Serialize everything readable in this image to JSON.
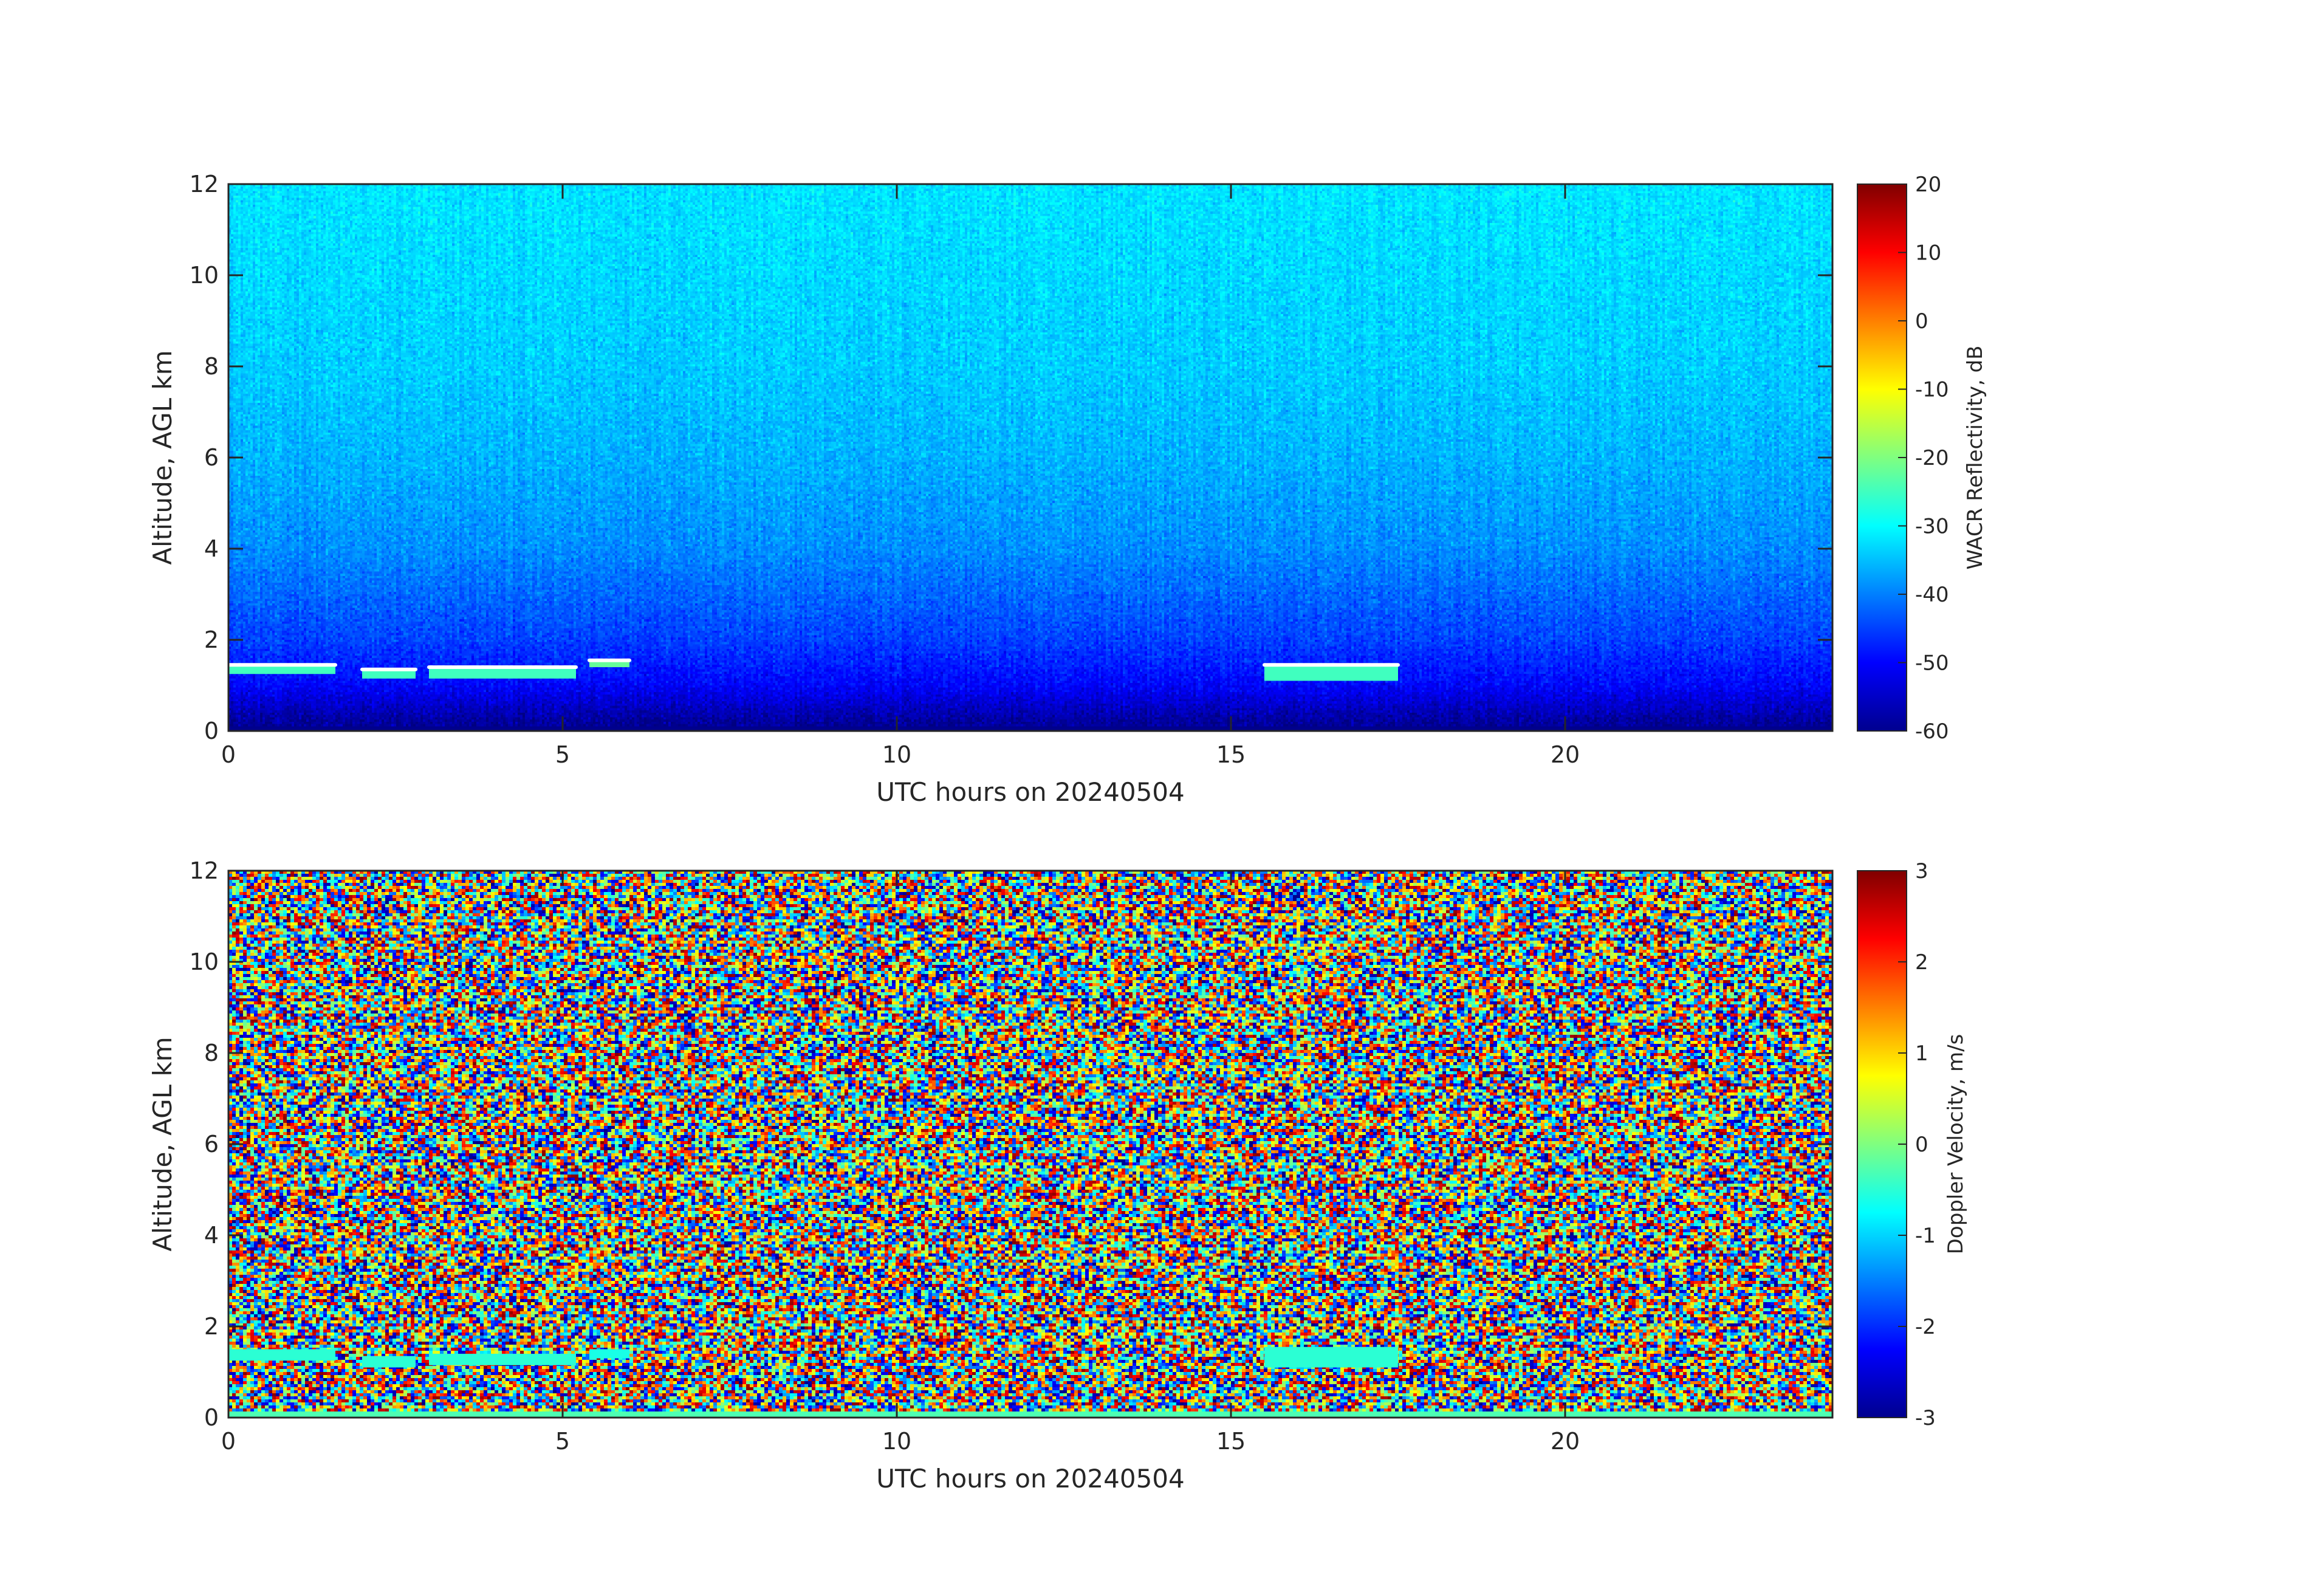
{
  "chart_data": [
    {
      "type": "heatmap",
      "title": "",
      "xlabel": "UTC hours on 20240504",
      "ylabel": "Altitude, AGL km",
      "xlim": [
        0,
        24
      ],
      "ylim": [
        0,
        12
      ],
      "xticks": [
        0,
        5,
        10,
        15,
        20
      ],
      "yticks": [
        0,
        2,
        4,
        6,
        8,
        10,
        12
      ],
      "colormap": "jet",
      "colorbar": {
        "label": "WACR Reflectivity, dB",
        "range": [
          -60,
          20
        ],
        "ticks": [
          20,
          10,
          0,
          -10,
          -20,
          -30,
          -40,
          -50,
          -60
        ]
      },
      "background_field": [
        {
          "altitude_km": 0.2,
          "value_db": -58
        },
        {
          "altitude_km": 0.5,
          "value_db": -55
        },
        {
          "altitude_km": 1.0,
          "value_db": -50
        },
        {
          "altitude_km": 2.0,
          "value_db": -45
        },
        {
          "altitude_km": 3.0,
          "value_db": -42
        },
        {
          "altitude_km": 4.0,
          "value_db": -39
        },
        {
          "altitude_km": 6.0,
          "value_db": -36
        },
        {
          "altitude_km": 8.0,
          "value_db": -34
        },
        {
          "altitude_km": 10.0,
          "value_db": -33
        },
        {
          "altitude_km": 12.0,
          "value_db": -32
        }
      ],
      "cloud_layers": [
        {
          "start_hour": 0.0,
          "end_hour": 1.6,
          "base_km": 1.25,
          "top_km": 1.45,
          "value_db": -25
        },
        {
          "start_hour": 2.0,
          "end_hour": 2.8,
          "base_km": 1.15,
          "top_km": 1.35,
          "value_db": -25
        },
        {
          "start_hour": 3.0,
          "end_hour": 5.2,
          "base_km": 1.15,
          "top_km": 1.4,
          "value_db": -25
        },
        {
          "start_hour": 5.4,
          "end_hour": 6.0,
          "base_km": 1.4,
          "top_km": 1.55,
          "value_db": -22
        },
        {
          "start_hour": 15.5,
          "end_hour": 17.5,
          "base_km": 1.1,
          "top_km": 1.45,
          "value_db": -25
        }
      ]
    },
    {
      "type": "heatmap",
      "title": "",
      "xlabel": "UTC hours on 20240504",
      "ylabel": "Altitude, AGL km",
      "xlim": [
        0,
        24
      ],
      "ylim": [
        0,
        12
      ],
      "xticks": [
        0,
        5,
        10,
        15,
        20
      ],
      "yticks": [
        0,
        2,
        4,
        6,
        8,
        10,
        12
      ],
      "colormap": "jet",
      "colorbar": {
        "label": "Doppler Velocity, m/s",
        "range": [
          -3,
          3
        ],
        "ticks": [
          3,
          2,
          1,
          0,
          -1,
          -2,
          -3
        ]
      },
      "background_field": "random noise spanning -3 to 3 m/s",
      "cloud_layers": [
        {
          "start_hour": 0.0,
          "end_hour": 1.6,
          "base_km": 1.25,
          "top_km": 1.5,
          "value_ms": -0.5
        },
        {
          "start_hour": 2.0,
          "end_hour": 2.8,
          "base_km": 1.1,
          "top_km": 1.35,
          "value_ms": -0.5
        },
        {
          "start_hour": 3.0,
          "end_hour": 5.2,
          "base_km": 1.15,
          "top_km": 1.4,
          "value_ms": -0.5
        },
        {
          "start_hour": 5.4,
          "end_hour": 6.0,
          "base_km": 1.3,
          "top_km": 1.5,
          "value_ms": -0.6
        },
        {
          "start_hour": 15.5,
          "end_hour": 17.5,
          "base_km": 1.1,
          "top_km": 1.55,
          "value_ms": -0.5
        }
      ]
    }
  ]
}
